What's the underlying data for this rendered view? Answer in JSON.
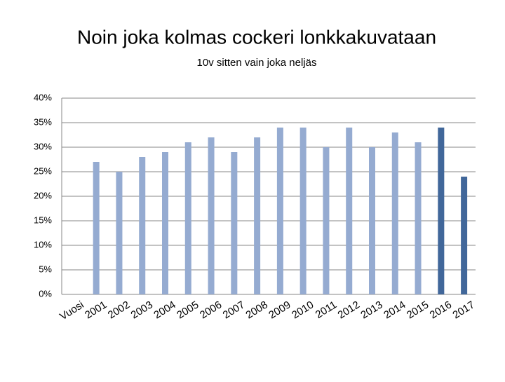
{
  "chart_data": {
    "type": "bar",
    "title": "Noin joka kolmas cockeri lonkkakuvataan",
    "subtitle": "10v sitten vain joka neljäs",
    "categories": [
      "Vuosi",
      "2001",
      "2002",
      "2003",
      "2004",
      "2005",
      "2006",
      "2007",
      "2008",
      "2009",
      "2010",
      "2011",
      "2012",
      "2013",
      "2014",
      "2015",
      "2016",
      "2017"
    ],
    "values": [
      null,
      27,
      25,
      28,
      29,
      31,
      32,
      29,
      32,
      34,
      34,
      30,
      34,
      30,
      33,
      31,
      34,
      24
    ],
    "colors": [
      "#95abd1",
      "#95abd1",
      "#95abd1",
      "#95abd1",
      "#95abd1",
      "#95abd1",
      "#95abd1",
      "#95abd1",
      "#95abd1",
      "#95abd1",
      "#95abd1",
      "#95abd1",
      "#95abd1",
      "#95abd1",
      "#95abd1",
      "#95abd1",
      "#41679a",
      "#41679a"
    ],
    "ylim": [
      0,
      40
    ],
    "yticks": [
      {
        "value": 0,
        "label": "0%"
      },
      {
        "value": 5,
        "label": "5%"
      },
      {
        "value": 10,
        "label": "10%"
      },
      {
        "value": 15,
        "label": "15%"
      },
      {
        "value": 20,
        "label": "20%"
      },
      {
        "value": 25,
        "label": "25%"
      },
      {
        "value": 30,
        "label": "30%"
      },
      {
        "value": 35,
        "label": "35%"
      },
      {
        "value": 40,
        "label": "40%"
      }
    ],
    "grid": true
  }
}
